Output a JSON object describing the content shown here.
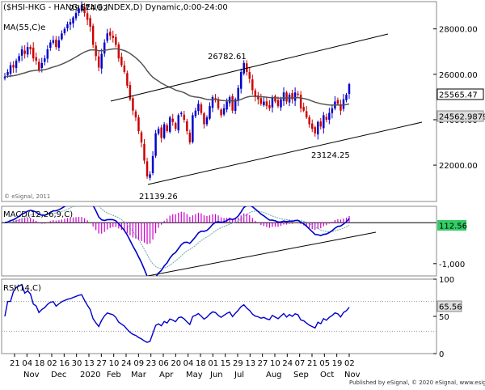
{
  "chart_data": {
    "type": "candlestick",
    "title": "($HSI-HKG - HANG SENG INDEX,D) Dynamic,0:00-24:00",
    "x_tick_labels": [
      "21",
      "04",
      "18",
      "02",
      "16",
      "30",
      "13",
      "27",
      "10",
      "24",
      "09",
      "23",
      "06",
      "20",
      "04",
      "18",
      "01",
      "15",
      "29",
      "13",
      "27",
      "10",
      "24",
      "07",
      "21",
      "05",
      "19",
      "02"
    ],
    "month_labels": [
      "Nov",
      "Dec",
      "2020",
      "Feb",
      "Mar",
      "Apr",
      "May",
      "Jun",
      "Jul",
      "Aug",
      "Sep",
      "Oct",
      "Nov"
    ],
    "price_panel": {
      "ylim": [
        20400,
        29200
      ],
      "y_ticks": [
        22000,
        24000,
        26000,
        28000
      ],
      "y_tick_labels": [
        "22000.00",
        "24000.00",
        "26000.00",
        "28000.00"
      ],
      "moving_average_label": "MA(55,C)e",
      "last_price_label": "25565.47",
      "ma_value_label": "24562.9879",
      "annotations": [
        "29174.92",
        "26782.61",
        "21139.26",
        "23124.25"
      ],
      "watermark": "© eSignal, 2011",
      "channel_lines": "parallel rising channel",
      "closes": [
        25900,
        26100,
        26400,
        26300,
        26600,
        26800,
        27100,
        26900,
        27200,
        27100,
        26700,
        26600,
        26200,
        26500,
        26700,
        27100,
        27400,
        27500,
        27200,
        27500,
        27800,
        28000,
        28200,
        28300,
        28500,
        28700,
        28900,
        29000,
        28700,
        28400,
        28100,
        27300,
        26800,
        26300,
        26900,
        27400,
        27800,
        27700,
        27600,
        27300,
        26700,
        26400,
        26100,
        25500,
        24900,
        24400,
        24100,
        23500,
        23000,
        22200,
        21500,
        21600,
        22400,
        23400,
        23600,
        23200,
        23800,
        23500,
        24100,
        23900,
        23600,
        24200,
        24300,
        24000,
        23500,
        23000,
        24200,
        24400,
        24700,
        24300,
        23800,
        24100,
        24600,
        25000,
        24900,
        24500,
        24200,
        24500,
        24800,
        25000,
        24400,
        24900,
        25400,
        26100,
        26500,
        26100,
        25800,
        25300,
        25000,
        24900,
        24700,
        24800,
        24600,
        24500,
        25000,
        24800,
        24600,
        24900,
        25200,
        24800,
        25100,
        24900,
        25200,
        25100,
        24500,
        24400,
        24100,
        23800,
        23600,
        23400,
        23900,
        23700,
        24200,
        24000,
        24300,
        24500,
        24800,
        24700,
        24400,
        24900,
        25100,
        25565
      ]
    },
    "macd_panel": {
      "label": "MACD(12,26,9,C)",
      "last_value_label": "112.56",
      "y_tick_labels": [
        "-1,000"
      ],
      "ylim": [
        -1300,
        400
      ]
    },
    "rsi_panel": {
      "label": "RSI(14,C)",
      "last_value_label": "65.56",
      "y_ticks": [
        0,
        50,
        100
      ],
      "ylim": [
        0,
        100
      ]
    },
    "footer": "Published by eSignal, © 2020 eSignal, www.esignal.com"
  }
}
